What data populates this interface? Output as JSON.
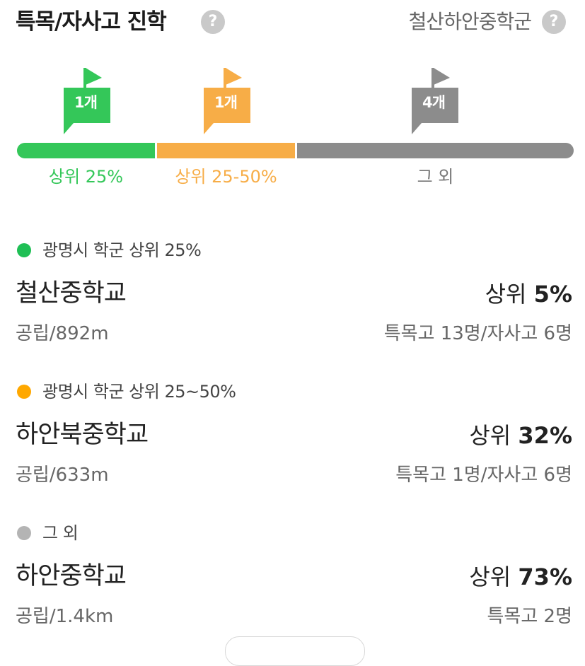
{
  "header": {
    "title": "특목/자사고 진학",
    "title_help": "?",
    "district": "철산하안중학군",
    "district_help": "?"
  },
  "distribution": {
    "segments": [
      {
        "label": "상위 25%",
        "count": "1개",
        "color": "#34c759"
      },
      {
        "label": "상위 25-50%",
        "count": "1개",
        "color": "#f7ad47"
      },
      {
        "label": "그 외",
        "count": "4개",
        "color": "#8c8c8c"
      }
    ]
  },
  "categories": [
    {
      "label": "광명시 학군 상위 25%",
      "dot_color": "#1fbf55",
      "school": {
        "name": "철산중학교",
        "rank_prefix": "상위 ",
        "rank_value": "5%",
        "meta": "공립/892m",
        "stats": "특목고 13명/자사고 6명"
      }
    },
    {
      "label": "광명시 학군 상위 25~50%",
      "dot_color": "#ffa800",
      "school": {
        "name": "하안북중학교",
        "rank_prefix": "상위 ",
        "rank_value": "32%",
        "meta": "공립/633m",
        "stats": "특목고 1명/자사고 6명"
      }
    },
    {
      "label": "그 외",
      "dot_color": "#b4b4b4",
      "school": {
        "name": "하안중학교",
        "rank_prefix": "상위 ",
        "rank_value": "73%",
        "meta": "공립/1.4km",
        "stats": "특목고 2명"
      }
    }
  ]
}
